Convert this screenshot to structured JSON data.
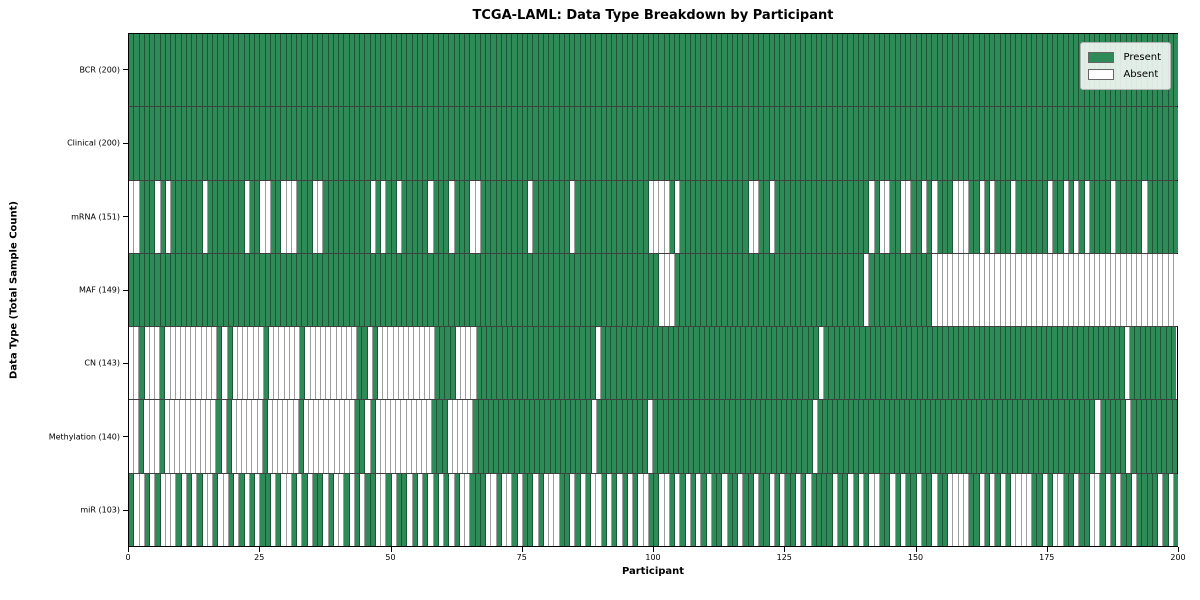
{
  "title": "TCGA-LAML: Data Type Breakdown by Participant",
  "axes": {
    "x_label": "Participant",
    "y_label": "Data Type (Total Sample Count)",
    "x_ticks": [
      0,
      25,
      50,
      75,
      100,
      125,
      150,
      175,
      200
    ],
    "x_range": [
      0,
      200
    ]
  },
  "legend": {
    "items": [
      {
        "label": "Present",
        "color": "#2e8b57"
      },
      {
        "label": "Absent",
        "color": "#ffffff"
      }
    ]
  },
  "colors": {
    "present": "#2e8b57",
    "absent": "#ffffff",
    "cell_edge": "rgba(0,0,0,0.38)",
    "row_separator": "rgba(0,0,0,0.75)",
    "plot_border": "#000000"
  },
  "chart_data": {
    "type": "heatmap",
    "title": "TCGA-LAML: Data Type Breakdown by Participant",
    "xlabel": "Participant",
    "ylabel": "Data Type (Total Sample Count)",
    "x_range": [
      0,
      200
    ],
    "x_ticks": [
      0,
      25,
      50,
      75,
      100,
      125,
      150,
      175,
      200
    ],
    "legend_entries": [
      "Present",
      "Absent"
    ],
    "legend_position": "upper right",
    "encoding": "per-participant presence string: 1 = Present (green), 0 = Absent (white), index = participant 0..199",
    "rows": [
      {
        "key": "bcr",
        "label": "BCR (200)",
        "present_count": 200,
        "pattern": "11111111111111111111111111111111111111111111111111111111111111111111111111111111111111111111111111111111111111111111111111111111111111111111111111111111111111111111111111111111111111111111111111111111"
      },
      {
        "key": "clinical",
        "label": "Clinical (200)",
        "present_count": 200,
        "pattern": "11111111111111111111111111111111111111111111111111111111111111111111111111111111111111111111111111111111111111111111111111111111111111111111111111111111111111111111111111111111111111111111111111111111"
      },
      {
        "key": "mrna",
        "label": "mRNA (151)",
        "present_count": 151,
        "pattern": "00111010111111011111110110011000111001111111110101101111101110111001111111110111111101111111111111100001011111111111110011011111111111111111101001100110101110001101011101111110110101011110111110111111"
      },
      {
        "key": "maf",
        "label": "MAF (149)",
        "present_count": 149,
        "pattern": "11111111111111111111111111111111111111111111111111111111111111111111111111111111111111111111111111111000111111111111111111111111111111111111011111111111100000000000000000000000000000000000000000000000"
      },
      {
        "key": "cn",
        "label": "CN (143)",
        "present_count": 143,
        "pattern": "00100010000000000101000000100000010000000000110100000000000111100001111111111111111111111101111111111111111111111111111111111111111110111111111111111111111111111111111111111111111111111111111101111111 11"
      },
      {
        "key": "methylation",
        "label": "Methylation (140)",
        "present_count": 140,
        "pattern": "00100010000000000101000000100000010000000000110100000000000111000001111111111111111111111101111111111011111111111111111111111111111110111111111111111111111111111111111111111111111111111111011111011111 1111"
      },
      {
        "key": "mir",
        "label": "miR (103)",
        "present_count": 103,
        "pattern": "10010100010101001001010101101001010110100101011001011010101010100111001001011010001101010010101010011001010101011011011011010110101111011010100110101101101100001101010100001101001101100101011011110101"
      }
    ]
  }
}
